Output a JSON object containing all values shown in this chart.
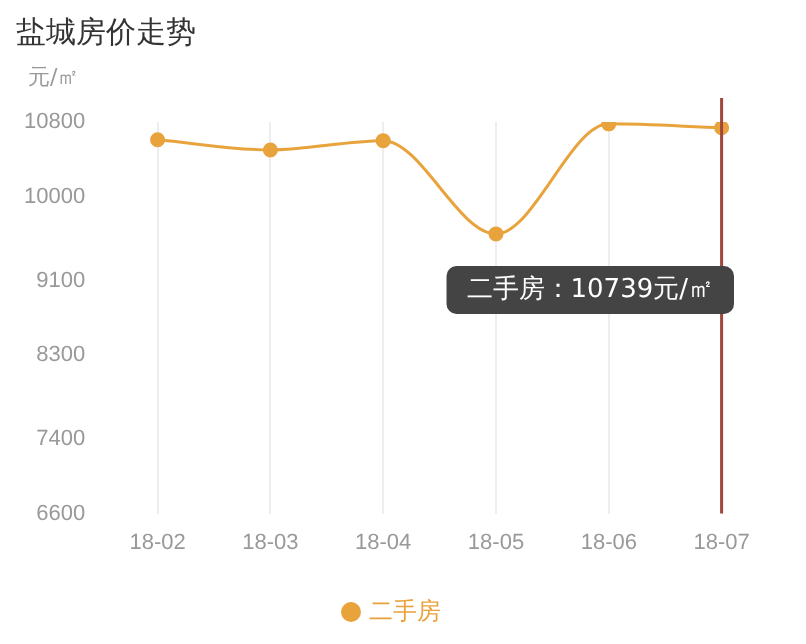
{
  "chart_data": {
    "type": "line",
    "title": "盐城房价走势",
    "ylabel": "元/㎡",
    "categories": [
      "18-02",
      "18-03",
      "18-04",
      "18-05",
      "18-06",
      "18-07"
    ],
    "series": [
      {
        "name": "二手房",
        "color": "#e8a33c",
        "values": [
          10610,
          10500,
          10600,
          9600,
          10780,
          10739
        ]
      }
    ],
    "ylim": [
      6600,
      10800
    ],
    "yticks": [
      6600,
      7400,
      8300,
      9100,
      10000,
      10800
    ],
    "ref_lines": [
      {
        "axis": "x",
        "value": "18-07",
        "color": "#a0463c"
      }
    ],
    "annotations": [
      "二手房：10739元/㎡"
    ],
    "grid": "x",
    "legend": "bottom",
    "marker": "circle",
    "line_style": "solid"
  }
}
